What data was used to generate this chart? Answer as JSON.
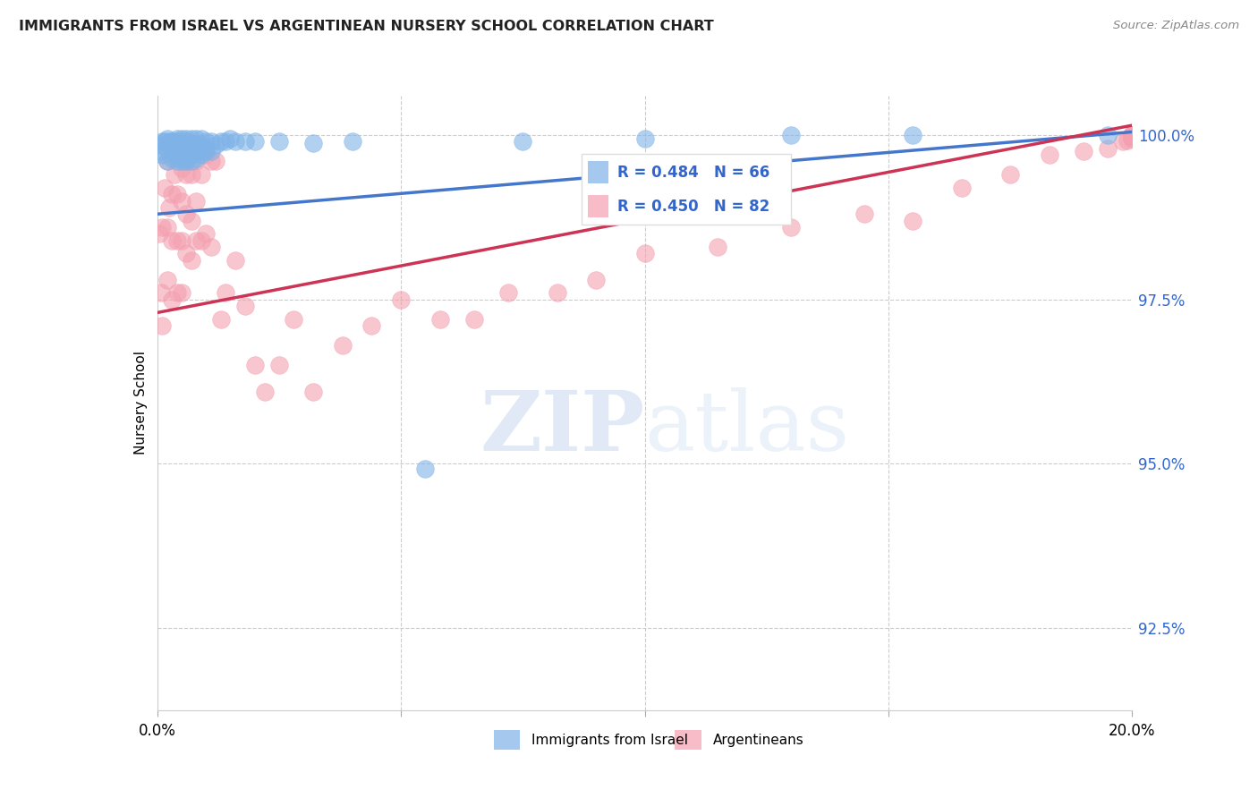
{
  "title": "IMMIGRANTS FROM ISRAEL VS ARGENTINEAN NURSERY SCHOOL CORRELATION CHART",
  "source": "Source: ZipAtlas.com",
  "ylabel": "Nursery School",
  "ytick_labels": [
    "92.5%",
    "95.0%",
    "97.5%",
    "100.0%"
  ],
  "ytick_values": [
    0.925,
    0.95,
    0.975,
    1.0
  ],
  "xmin": 0.0,
  "xmax": 0.2,
  "ymin": 0.9125,
  "ymax": 1.006,
  "legend_israel_label": "Immigrants from Israel",
  "legend_arg_label": "Argentineans",
  "legend_r_israel": "R = 0.484",
  "legend_n_israel": "N = 66",
  "legend_r_arg": "R = 0.450",
  "legend_n_arg": "N = 82",
  "israel_color": "#7fb3e8",
  "arg_color": "#f4a0b0",
  "israel_line_color": "#4477cc",
  "arg_line_color": "#cc3355",
  "watermark_zip": "ZIP",
  "watermark_atlas": "atlas",
  "israel_x": [
    0.0008,
    0.0008,
    0.001,
    0.001,
    0.0015,
    0.002,
    0.002,
    0.002,
    0.0025,
    0.003,
    0.003,
    0.003,
    0.003,
    0.0035,
    0.004,
    0.004,
    0.004,
    0.004,
    0.004,
    0.005,
    0.005,
    0.005,
    0.005,
    0.005,
    0.005,
    0.006,
    0.006,
    0.006,
    0.006,
    0.006,
    0.006,
    0.007,
    0.007,
    0.007,
    0.007,
    0.007,
    0.007,
    0.008,
    0.008,
    0.008,
    0.008,
    0.009,
    0.009,
    0.009,
    0.009,
    0.01,
    0.01,
    0.01,
    0.011,
    0.011,
    0.012,
    0.013,
    0.014,
    0.015,
    0.016,
    0.018,
    0.02,
    0.025,
    0.032,
    0.04,
    0.055,
    0.075,
    0.1,
    0.13,
    0.155,
    0.195
  ],
  "israel_y": [
    0.9975,
    0.9985,
    0.997,
    0.999,
    0.999,
    0.996,
    0.998,
    0.9995,
    0.999,
    0.9965,
    0.9975,
    0.9985,
    0.999,
    0.999,
    0.996,
    0.997,
    0.998,
    0.999,
    0.9995,
    0.996,
    0.9965,
    0.9975,
    0.998,
    0.9985,
    0.9995,
    0.996,
    0.9965,
    0.9975,
    0.998,
    0.9985,
    0.9995,
    0.996,
    0.997,
    0.9975,
    0.998,
    0.9988,
    0.9995,
    0.9965,
    0.9975,
    0.9985,
    0.9995,
    0.997,
    0.9975,
    0.9985,
    0.9995,
    0.9975,
    0.998,
    0.999,
    0.9975,
    0.999,
    0.9985,
    0.999,
    0.999,
    0.9995,
    0.999,
    0.999,
    0.999,
    0.999,
    0.9988,
    0.999,
    0.9492,
    0.999,
    0.9995,
    1.0,
    1.0,
    1.0
  ],
  "arg_x": [
    0.0005,
    0.0008,
    0.001,
    0.001,
    0.0015,
    0.002,
    0.002,
    0.002,
    0.0025,
    0.003,
    0.003,
    0.003,
    0.003,
    0.0035,
    0.004,
    0.004,
    0.004,
    0.004,
    0.005,
    0.005,
    0.005,
    0.005,
    0.005,
    0.006,
    0.006,
    0.006,
    0.006,
    0.007,
    0.007,
    0.007,
    0.007,
    0.008,
    0.008,
    0.008,
    0.009,
    0.009,
    0.01,
    0.01,
    0.011,
    0.011,
    0.012,
    0.013,
    0.014,
    0.016,
    0.018,
    0.02,
    0.022,
    0.025,
    0.028,
    0.032,
    0.038,
    0.044,
    0.05,
    0.058,
    0.065,
    0.072,
    0.082,
    0.09,
    0.1,
    0.115,
    0.13,
    0.145,
    0.155,
    0.165,
    0.175,
    0.183,
    0.19,
    0.195,
    0.198,
    0.199,
    0.2,
    0.2,
    0.2,
    0.2,
    0.2,
    0.2,
    0.2,
    0.2,
    0.2,
    0.2,
    0.2,
    0.2
  ],
  "arg_y": [
    0.985,
    0.976,
    0.971,
    0.986,
    0.992,
    0.978,
    0.986,
    0.996,
    0.989,
    0.975,
    0.984,
    0.991,
    0.997,
    0.994,
    0.976,
    0.984,
    0.991,
    0.997,
    0.976,
    0.984,
    0.99,
    0.995,
    0.998,
    0.982,
    0.988,
    0.994,
    0.999,
    0.981,
    0.987,
    0.994,
    0.998,
    0.984,
    0.99,
    0.996,
    0.984,
    0.994,
    0.985,
    0.997,
    0.983,
    0.996,
    0.996,
    0.972,
    0.976,
    0.981,
    0.974,
    0.965,
    0.961,
    0.965,
    0.972,
    0.961,
    0.968,
    0.971,
    0.975,
    0.972,
    0.972,
    0.976,
    0.976,
    0.978,
    0.982,
    0.983,
    0.986,
    0.988,
    0.987,
    0.992,
    0.994,
    0.997,
    0.9975,
    0.998,
    0.999,
    0.9992,
    0.9995,
    0.9997,
    0.9998,
    0.9998,
    0.9999,
    1.0,
    1.0,
    1.0,
    1.0,
    1.0,
    1.0,
    1.0
  ]
}
